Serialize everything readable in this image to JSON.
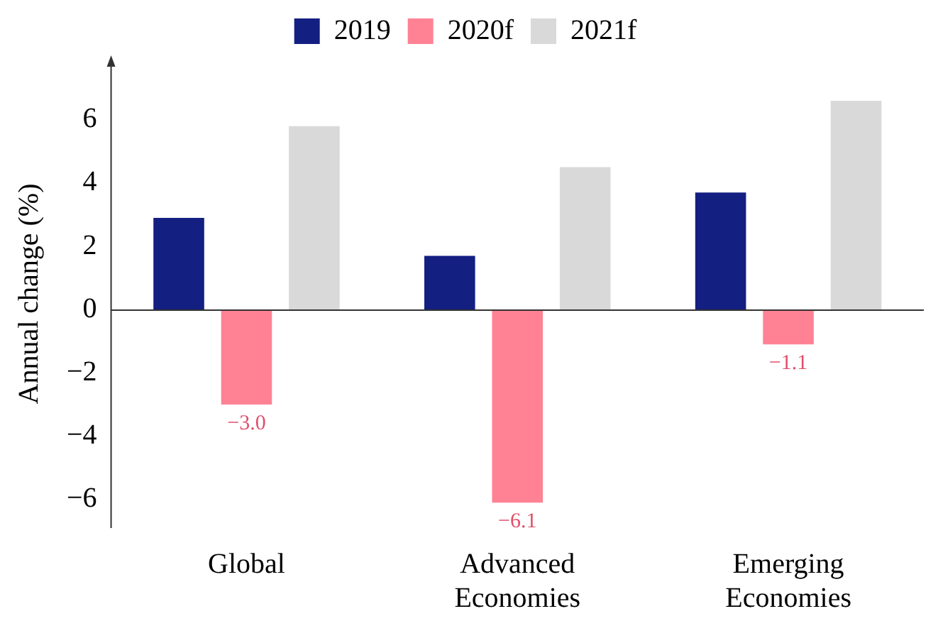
{
  "chart_data": {
    "type": "bar",
    "ylabel": "Annual change (%)",
    "categories": [
      "Global",
      "Advanced Economies",
      "Emerging Economies"
    ],
    "series": [
      {
        "name": "2019",
        "color": "#141f82",
        "values": [
          2.9,
          1.7,
          3.7
        ]
      },
      {
        "name": "2020f",
        "color": "#ff8294",
        "values": [
          -3.0,
          -6.1,
          -1.1
        ],
        "value_labels": [
          "−3.0",
          "−6.1",
          "−1.1"
        ]
      },
      {
        "name": "2021f",
        "color": "#d9d9d9",
        "values": [
          5.8,
          4.5,
          6.6
        ]
      }
    ],
    "ylim": [
      -6.9,
      7.9
    ],
    "yticks": [
      {
        "value": -6,
        "label": "−6"
      },
      {
        "value": -4,
        "label": "−4"
      },
      {
        "value": -2,
        "label": "−2"
      },
      0,
      2,
      4,
      6
    ],
    "ref_lines": [
      {
        "axis": "y",
        "value": 0,
        "color": "#333333"
      }
    ],
    "legend": "top"
  }
}
